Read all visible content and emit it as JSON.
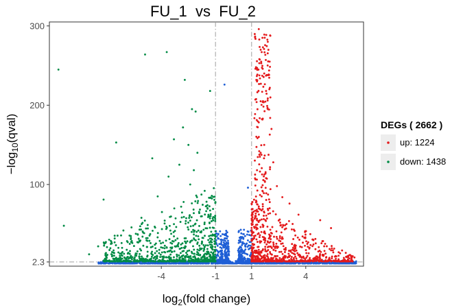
{
  "chart_data": {
    "type": "scatter",
    "title": "FU_1  vs  FU_2",
    "xlabel": "log2(fold change)",
    "ylabel": "-log10(qval)",
    "xlim": [
      -10.2,
      7.2
    ],
    "ylim": [
      -3,
      305
    ],
    "x_ticks": [
      -4,
      -1,
      1,
      4
    ],
    "y_ticks": [
      2.3,
      100,
      200,
      300
    ],
    "x_tick_labels": [
      "-4",
      "-1",
      "1",
      "4"
    ],
    "y_tick_labels": [
      "2.3",
      "100",
      "200",
      "300"
    ],
    "threshold_lines": {
      "x": [
        -1,
        1
      ],
      "y": [
        2.3
      ]
    },
    "grid": false,
    "legend": {
      "title": "DEGs ( 2662 )",
      "placement": "right",
      "entries": [
        {
          "label": "up: 1224",
          "color": "#e41a1c"
        },
        {
          "label": "down: 1438",
          "color": "#008b45"
        }
      ]
    },
    "colors": {
      "up": "#e41a1c",
      "down": "#008b45",
      "not_significant": "#1f5fd6"
    },
    "series": [
      {
        "name": "up: 1224",
        "color": "#e41a1c",
        "count": 1224,
        "points": [
          [
            1.4,
            296
          ],
          [
            1.6,
            285
          ],
          [
            1.5,
            270
          ],
          [
            2.0,
            255
          ],
          [
            1.7,
            240
          ],
          [
            1.3,
            230
          ],
          [
            1.8,
            218
          ],
          [
            1.5,
            205
          ],
          [
            1.9,
            195
          ],
          [
            1.6,
            182
          ],
          [
            2.1,
            170
          ],
          [
            1.4,
            160
          ],
          [
            1.7,
            150
          ],
          [
            1.5,
            140
          ],
          [
            2.2,
            128
          ],
          [
            1.3,
            118
          ],
          [
            1.8,
            108
          ],
          [
            2.4,
            98
          ],
          [
            1.6,
            92
          ],
          [
            2.7,
            84
          ],
          [
            3.1,
            76
          ],
          [
            2.0,
            70
          ],
          [
            3.6,
            62
          ],
          [
            4.8,
            55
          ],
          [
            5.4,
            45
          ],
          [
            6.7,
            8
          ]
        ]
      },
      {
        "name": "down: 1438",
        "color": "#008b45",
        "count": 1438,
        "points": [
          [
            -9.7,
            245
          ],
          [
            -6.5,
            153
          ],
          [
            -4.9,
            264
          ],
          [
            -3.7,
            267
          ],
          [
            -2.7,
            232
          ],
          [
            -2.3,
            195
          ],
          [
            -2.1,
            192
          ],
          [
            -2.8,
            172
          ],
          [
            -3.3,
            157
          ],
          [
            -2.5,
            150
          ],
          [
            -4.5,
            133
          ],
          [
            -2.0,
            140
          ],
          [
            -3.0,
            125
          ],
          [
            -2.2,
            118
          ],
          [
            -7.2,
            81
          ],
          [
            -9.4,
            48
          ],
          [
            -1.3,
            218
          ],
          [
            -3.6,
            110
          ],
          [
            -2.4,
            100
          ],
          [
            -1.6,
            92
          ],
          [
            -4.2,
            85
          ],
          [
            -2.9,
            72
          ],
          [
            -1.9,
            64
          ],
          [
            -5.1,
            58
          ],
          [
            -3.3,
            50
          ],
          [
            -6.1,
            42
          ],
          [
            -2.2,
            37
          ],
          [
            -7.5,
            22
          ],
          [
            -8.0,
            12
          ],
          [
            -1.4,
            30
          ]
        ]
      },
      {
        "name": "not significant",
        "color": "#1f5fd6",
        "count": null,
        "points": [
          [
            -0.5,
            226
          ],
          [
            0.8,
            96
          ],
          [
            -0.6,
            30
          ],
          [
            0.3,
            12
          ],
          [
            -0.3,
            18
          ],
          [
            0.6,
            8
          ]
        ]
      }
    ]
  }
}
